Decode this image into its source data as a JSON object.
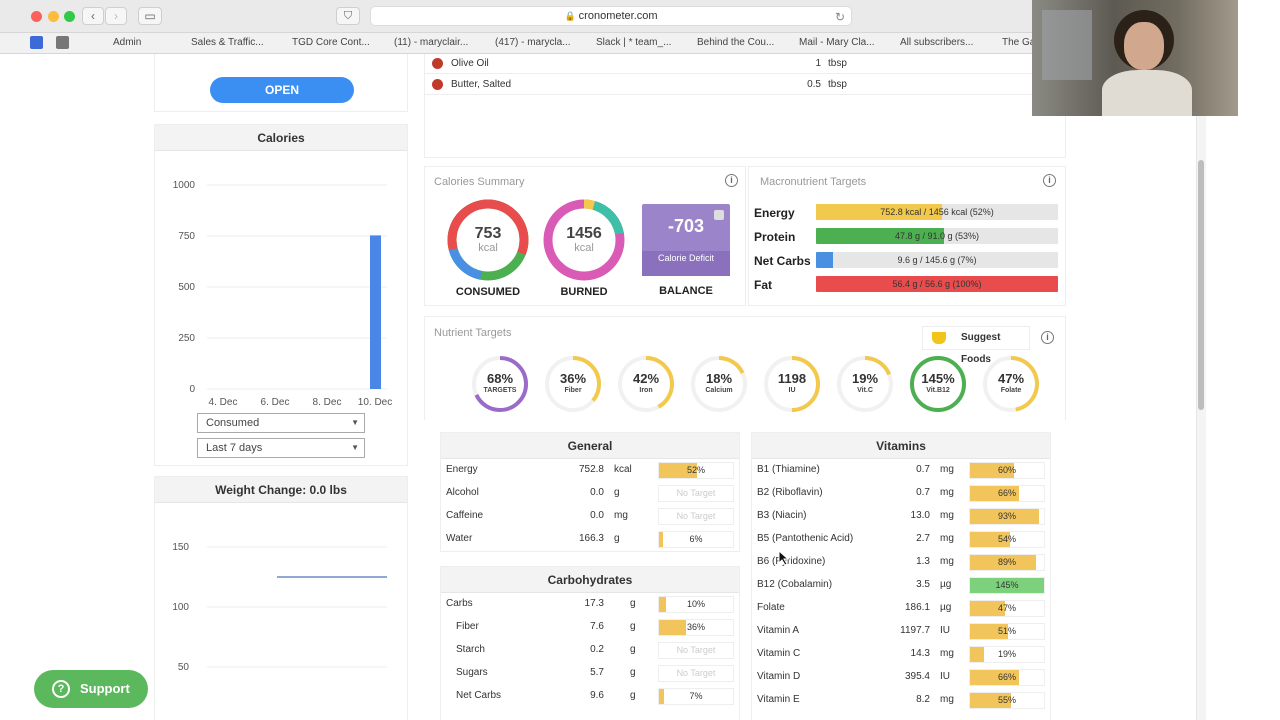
{
  "browser": {
    "url": "cronometer.com",
    "bookmarks": [
      "Admin",
      "Sales & Traffic...",
      "TGD Core Cont...",
      "(11) - maryclair...",
      "(417) - marycla...",
      "Slack | * team_...",
      "Behind the Cou...",
      "Mail - Mary Cla...",
      "All subscribers...",
      "The Ga"
    ]
  },
  "diary": {
    "items": [
      {
        "name": "Olive Oil",
        "amount": "1",
        "unit": "tbsp"
      },
      {
        "name": "Butter, Salted",
        "amount": "0.5",
        "unit": "tbsp"
      }
    ]
  },
  "sidebar": {
    "open_label": "OPEN",
    "calories_title": "Calories",
    "calories_chart": {
      "type": "bar",
      "yticks": [
        "1000",
        "750",
        "500",
        "250",
        "0"
      ],
      "xticks": [
        "4. Dec",
        "6. Dec",
        "8. Dec",
        "10. Dec"
      ],
      "ylim": [
        0,
        1000
      ],
      "values": [
        {
          "x": "10. Dec",
          "y": 753
        }
      ],
      "color": "#4a86e8"
    },
    "metric_select": "Consumed",
    "range_select": "Last 7 days",
    "weight_title": "Weight Change: 0.0 lbs",
    "weight_chart": {
      "type": "line",
      "yticks": [
        "150",
        "100",
        "50"
      ],
      "ylim": [
        25,
        175
      ],
      "value": 125,
      "color": "#8fa8d6"
    }
  },
  "calories_summary": {
    "title": "Calories Summary",
    "consumed": {
      "value": "753",
      "unit": "kcal",
      "label": "CONSUMED"
    },
    "burned": {
      "value": "1456",
      "unit": "kcal",
      "label": "BURNED"
    },
    "balance": {
      "value": "-703",
      "sub": "Calorie Deficit",
      "label": "BALANCE"
    }
  },
  "macro_targets": {
    "title": "Macronutrient Targets",
    "rows": [
      {
        "label": "Energy",
        "text": "752.8 kcal / 1456 kcal (52%)",
        "pct": 52,
        "color": "#f2c94c"
      },
      {
        "label": "Protein",
        "text": "47.8 g / 91.0 g (53%)",
        "pct": 53,
        "color": "#4caf50"
      },
      {
        "label": "Net Carbs",
        "text": "9.6 g / 145.6 g (7%)",
        "pct": 7,
        "color": "#4a90e2"
      },
      {
        "label": "Fat",
        "text": "56.4 g / 56.6 g (100%)",
        "pct": 100,
        "color": "#e84c4c"
      }
    ]
  },
  "nutrient_targets": {
    "title": "Nutrient Targets",
    "suggest_label": "Suggest Foods",
    "rings": [
      {
        "pct": "68%",
        "label": "TARGETS",
        "value": 0.68,
        "color": "#9b6bc9"
      },
      {
        "pct": "36%",
        "label": "Fiber",
        "value": 0.36,
        "color": "#f2c94c"
      },
      {
        "pct": "42%",
        "label": "Iron",
        "value": 0.42,
        "color": "#f2c94c"
      },
      {
        "pct": "18%",
        "label": "Calcium",
        "value": 0.18,
        "color": "#f2c94c"
      },
      {
        "pct": "1198",
        "label": "IU",
        "value": 0.5,
        "color": "#f2c94c"
      },
      {
        "pct": "19%",
        "label": "Vit.C",
        "value": 0.19,
        "color": "#f2c94c"
      },
      {
        "pct": "145%",
        "label": "Vit.B12",
        "value": 1.0,
        "color": "#4caf50"
      },
      {
        "pct": "47%",
        "label": "Folate",
        "value": 0.47,
        "color": "#f2c94c"
      }
    ]
  },
  "general": {
    "title": "General",
    "rows": [
      {
        "name": "Energy",
        "value": "752.8",
        "unit": "kcal",
        "bar": "52%",
        "pct": 52
      },
      {
        "name": "Alcohol",
        "value": "0.0",
        "unit": "g",
        "bar": "No Target",
        "pct": 0
      },
      {
        "name": "Caffeine",
        "value": "0.0",
        "unit": "mg",
        "bar": "No Target",
        "pct": 0
      },
      {
        "name": "Water",
        "value": "166.3",
        "unit": "g",
        "bar": "6%",
        "pct": 6
      }
    ]
  },
  "carbohydrates": {
    "title": "Carbohydrates",
    "rows": [
      {
        "name": "Carbs",
        "value": "17.3",
        "unit": "g",
        "bar": "10%",
        "pct": 10,
        "indent": false
      },
      {
        "name": "Fiber",
        "value": "7.6",
        "unit": "g",
        "bar": "36%",
        "pct": 36,
        "indent": true
      },
      {
        "name": "Starch",
        "value": "0.2",
        "unit": "g",
        "bar": "No Target",
        "pct": 0,
        "indent": true
      },
      {
        "name": "Sugars",
        "value": "5.7",
        "unit": "g",
        "bar": "No Target",
        "pct": 0,
        "indent": true
      },
      {
        "name": "Net Carbs",
        "value": "9.6",
        "unit": "g",
        "bar": "7%",
        "pct": 7,
        "indent": true
      }
    ]
  },
  "vitamins": {
    "title": "Vitamins",
    "rows": [
      {
        "name": "B1 (Thiamine)",
        "value": "0.7",
        "unit": "mg",
        "bar": "60%",
        "pct": 60
      },
      {
        "name": "B2 (Riboflavin)",
        "value": "0.7",
        "unit": "mg",
        "bar": "66%",
        "pct": 66
      },
      {
        "name": "B3 (Niacin)",
        "value": "13.0",
        "unit": "mg",
        "bar": "93%",
        "pct": 93
      },
      {
        "name": "B5 (Pantothenic Acid)",
        "value": "2.7",
        "unit": "mg",
        "bar": "54%",
        "pct": 54
      },
      {
        "name": "B6 (Pyridoxine)",
        "value": "1.3",
        "unit": "mg",
        "bar": "89%",
        "pct": 89
      },
      {
        "name": "B12 (Cobalamin)",
        "value": "3.5",
        "unit": "µg",
        "bar": "145%",
        "pct": 100,
        "color": "#7dd17d"
      },
      {
        "name": "Folate",
        "value": "186.1",
        "unit": "µg",
        "bar": "47%",
        "pct": 47
      },
      {
        "name": "Vitamin A",
        "value": "1197.7",
        "unit": "IU",
        "bar": "51%",
        "pct": 51
      },
      {
        "name": "Vitamin C",
        "value": "14.3",
        "unit": "mg",
        "bar": "19%",
        "pct": 19
      },
      {
        "name": "Vitamin D",
        "value": "395.4",
        "unit": "IU",
        "bar": "66%",
        "pct": 66
      },
      {
        "name": "Vitamin E",
        "value": "8.2",
        "unit": "mg",
        "bar": "55%",
        "pct": 55
      }
    ]
  },
  "support_label": "Support"
}
